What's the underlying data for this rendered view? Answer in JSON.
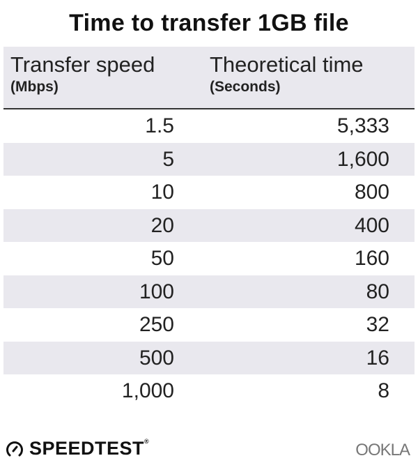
{
  "title": "Time to transfer 1GB file",
  "chart_data": {
    "type": "table",
    "title": "Time to transfer 1GB file",
    "columns": [
      {
        "label": "Transfer speed",
        "unit": "(Mbps)"
      },
      {
        "label": "Theoretical time",
        "unit": "(Seconds)"
      }
    ],
    "rows": [
      [
        "1.5",
        "5,333"
      ],
      [
        "5",
        "1,600"
      ],
      [
        "10",
        "800"
      ],
      [
        "20",
        "400"
      ],
      [
        "50",
        "160"
      ],
      [
        "100",
        "80"
      ],
      [
        "250",
        "32"
      ],
      [
        "500",
        "16"
      ],
      [
        "1,000",
        "8"
      ]
    ],
    "colors": {
      "header_bg": "#e9e8ee",
      "alt_row_bg": "#e9e8ee",
      "text": "#222222"
    }
  },
  "footer": {
    "brand": "SPEEDTEST",
    "brand_mark": "®",
    "brand_icon": "gauge-icon",
    "partner_logo": "OOKLA"
  }
}
